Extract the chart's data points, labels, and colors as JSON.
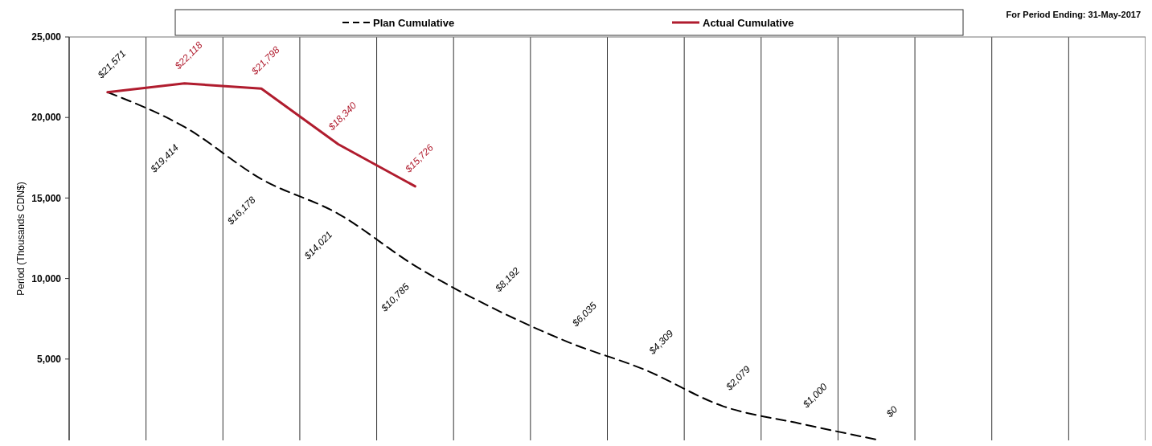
{
  "chart_data": {
    "type": "line",
    "ylabel": "Period (Thousands CDN$)",
    "annotations": [
      "For Period Ending: 31-May-2017"
    ],
    "categories": [
      null,
      null,
      null,
      null,
      null,
      null,
      null,
      null,
      null,
      null,
      null,
      null,
      null,
      null
    ],
    "series": [
      {
        "name": "Plan Cumulative",
        "color": "#000000",
        "line_style": "dashed",
        "values": [
          21571,
          19414,
          16178,
          14021,
          10785,
          8192,
          6035,
          4309,
          2079,
          1000,
          0,
          null,
          null,
          null
        ],
        "value_labels": [
          "$21,571",
          "$19,414",
          "$16,178",
          "$14,021",
          "$10,785",
          "$8,192",
          "$6,035",
          "$4,309",
          "$2,079",
          "$1,000",
          "$0",
          null,
          null,
          null
        ]
      },
      {
        "name": "Actual Cumulative",
        "color": "#b01c2e",
        "line_style": "solid",
        "values": [
          21571,
          22118,
          21798,
          18340,
          15726,
          null,
          null,
          null,
          null,
          null,
          null,
          null,
          null,
          null
        ],
        "value_labels": [
          null,
          "$22,118",
          "$21,798",
          "$18,340",
          "$15,726",
          null,
          null,
          null,
          null,
          null,
          null,
          null,
          null,
          null
        ]
      }
    ],
    "ylim": [
      0,
      25000
    ],
    "yticks": [
      {
        "value": 5000,
        "label": "5,000"
      },
      {
        "value": 10000,
        "label": "10,000"
      },
      {
        "value": 15000,
        "label": "15,000"
      },
      {
        "value": 20000,
        "label": "20,000"
      },
      {
        "value": 25000,
        "label": "25,000"
      }
    ],
    "grid": "x",
    "legend": "top",
    "marker": "none"
  }
}
